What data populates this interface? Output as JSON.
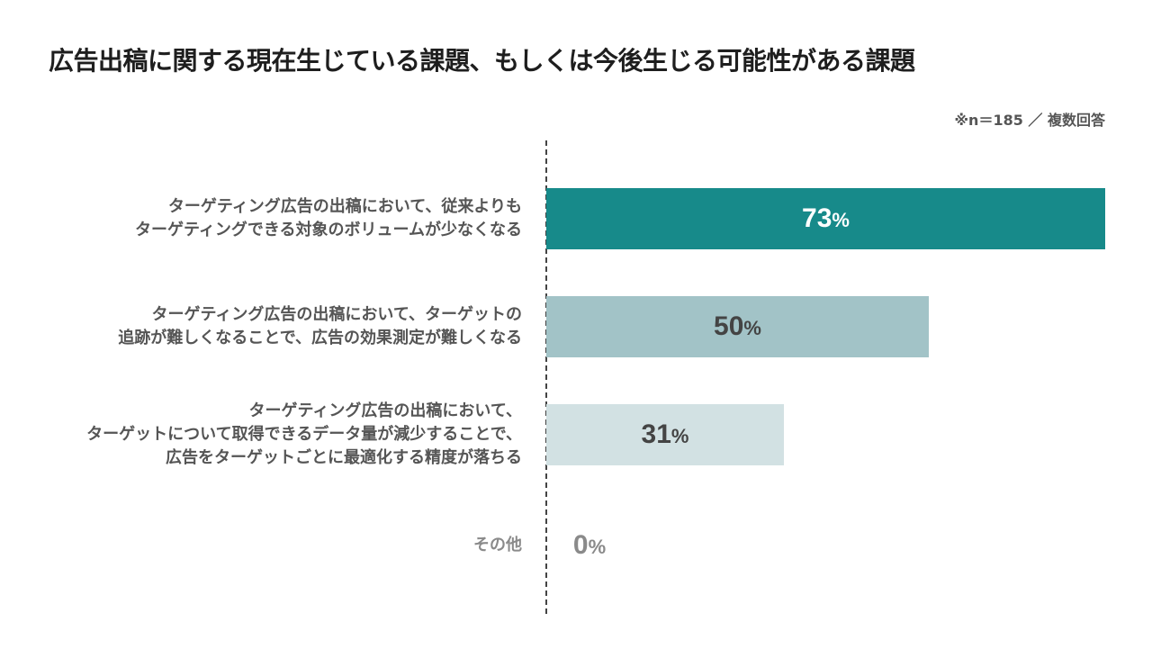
{
  "title": "広告出稿に関する現在生じている課題、もしくは今後生じる可能性がある課題",
  "note": "※n＝185 ／ 複数回答",
  "colors": {
    "bar1": "#178a8a",
    "bar2": "#a2c3c7",
    "bar3": "#d2e1e3",
    "text_dark": "#444444",
    "text_muted": "#8a8a8a"
  },
  "chart_data": {
    "type": "bar",
    "orientation": "horizontal",
    "categories": [
      [
        "ターゲティング広告の出稿において、従来よりも",
        "ターゲティングできる対象のボリュームが少なくなる"
      ],
      [
        "ターゲティング広告の出稿において、ターゲットの",
        "追跡が難しくなることで、広告の効果測定が難しくなる"
      ],
      [
        "ターゲティング広告の出稿において、",
        "ターゲットについて取得できるデータ量が減少することで、",
        "広告をターゲットごとに最適化する精度が落ちる"
      ],
      [
        "その他"
      ]
    ],
    "values": [
      73,
      50,
      31,
      0
    ],
    "unit": "%",
    "xlim": [
      0,
      73
    ],
    "grid": false,
    "legend": false
  }
}
